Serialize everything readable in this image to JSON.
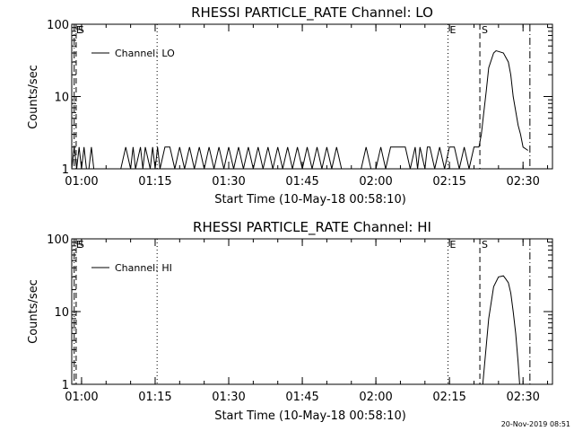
{
  "chart_data": [
    {
      "type": "line",
      "title": "RHESSI PARTICLE_RATE Channel: LO",
      "xlabel": "Start Time (10-May-18 00:58:10)",
      "ylabel": "Counts/sec",
      "y_scale": "log",
      "ylim": [
        1,
        100
      ],
      "xlim_minutes": [
        0,
        98
      ],
      "x_ticks": [
        {
          "label": "01:00",
          "minutes": 2
        },
        {
          "label": "01:15",
          "minutes": 17
        },
        {
          "label": "01:30",
          "minutes": 32
        },
        {
          "label": "01:45",
          "minutes": 47
        },
        {
          "label": "02:00",
          "minutes": 62
        },
        {
          "label": "02:15",
          "minutes": 77
        },
        {
          "label": "02:30",
          "minutes": 92
        }
      ],
      "y_ticks": [
        {
          "label": "1",
          "value": 1
        },
        {
          "label": "10",
          "value": 10
        },
        {
          "label": "100",
          "value": 100
        }
      ],
      "legend": {
        "label": "Channel: LO",
        "placement": "top-left"
      },
      "markers": [
        {
          "minutes": 0.5,
          "style": "dash-dot",
          "label": "E"
        },
        {
          "minutes": 0.9,
          "style": "dashed",
          "label": "S"
        },
        {
          "minutes": 17.4,
          "style": "dotted",
          "label": ""
        },
        {
          "minutes": 76.7,
          "style": "dotted",
          "label": "E"
        },
        {
          "minutes": 83.2,
          "style": "dashed",
          "label": "S"
        },
        {
          "minutes": 93.4,
          "style": "dash-dot",
          "label": ""
        }
      ],
      "series": [
        {
          "name": "Channel: LO",
          "x": [
            0,
            0.5,
            1,
            1.5,
            2,
            2.5,
            3,
            3.5,
            4,
            4.5,
            5,
            8,
            10,
            11,
            12,
            12.5,
            13,
            14,
            14.5,
            15,
            16,
            16.5,
            17,
            17.5,
            18,
            19,
            20,
            21,
            22,
            23,
            24,
            25,
            26,
            27,
            28,
            29,
            30,
            31,
            32,
            33,
            34,
            35,
            36,
            37,
            38,
            39,
            40,
            41,
            42,
            43,
            44,
            45,
            46,
            47,
            48,
            49,
            50,
            51,
            52,
            53,
            54,
            55,
            56,
            57,
            58,
            59,
            60,
            61,
            62,
            63,
            64,
            65,
            66,
            67,
            68,
            69,
            70,
            70.5,
            71,
            72,
            72.5,
            73,
            74,
            75,
            76,
            77,
            78,
            79,
            80,
            81,
            82,
            83,
            83.5,
            84,
            84.5,
            85,
            86,
            86.5,
            87,
            88,
            89,
            89.5,
            90,
            91,
            91.5,
            92,
            93
          ],
          "y": [
            1,
            2,
            1,
            2,
            1,
            2,
            1,
            1,
            2,
            1,
            1,
            1,
            1,
            2,
            1,
            2,
            1,
            2,
            1,
            2,
            1,
            2,
            1,
            2,
            1,
            2,
            2,
            1,
            2,
            1,
            2,
            1,
            2,
            1,
            2,
            1,
            2,
            1,
            2,
            1,
            2,
            1,
            2,
            1,
            2,
            1,
            2,
            1,
            2,
            1,
            2,
            1,
            2,
            1,
            2,
            1,
            2,
            1,
            2,
            1,
            2,
            1,
            1,
            1,
            1,
            1,
            2,
            1,
            1,
            2,
            1,
            2,
            2,
            2,
            2,
            1,
            2,
            1,
            2,
            1,
            2,
            2,
            1,
            2,
            1,
            2,
            2,
            1,
            2,
            1,
            2,
            2,
            3,
            6,
            12,
            25,
            40,
            43,
            42,
            40,
            30,
            20,
            10,
            4,
            3,
            2,
            1.8
          ]
        }
      ]
    },
    {
      "type": "line",
      "title": "RHESSI PARTICLE_RATE Channel: HI",
      "xlabel": "Start Time (10-May-18 00:58:10)",
      "ylabel": "Counts/sec",
      "y_scale": "log",
      "ylim": [
        1,
        100
      ],
      "xlim_minutes": [
        0,
        98
      ],
      "x_ticks": [
        {
          "label": "01:00",
          "minutes": 2
        },
        {
          "label": "01:15",
          "minutes": 17
        },
        {
          "label": "01:30",
          "minutes": 32
        },
        {
          "label": "01:45",
          "minutes": 47
        },
        {
          "label": "02:00",
          "minutes": 62
        },
        {
          "label": "02:15",
          "minutes": 77
        },
        {
          "label": "02:30",
          "minutes": 92
        }
      ],
      "y_ticks": [
        {
          "label": "1",
          "value": 1
        },
        {
          "label": "10",
          "value": 10
        },
        {
          "label": "100",
          "value": 100
        }
      ],
      "legend": {
        "label": "Channel: HI",
        "placement": "top-left"
      },
      "markers": [
        {
          "minutes": 0.5,
          "style": "dash-dot",
          "label": "E"
        },
        {
          "minutes": 0.9,
          "style": "dashed",
          "label": "S"
        },
        {
          "minutes": 17.4,
          "style": "dotted",
          "label": ""
        },
        {
          "minutes": 76.7,
          "style": "dotted",
          "label": "E"
        },
        {
          "minutes": 83.2,
          "style": "dashed",
          "label": "S"
        },
        {
          "minutes": 93.4,
          "style": "dash-dot",
          "label": ""
        }
      ],
      "series": [
        {
          "name": "Channel: HI",
          "x": [
            83.8,
            84.2,
            85,
            86,
            87,
            88,
            88.5,
            89,
            89.5,
            90,
            90.5,
            91,
            91.3
          ],
          "y": [
            1,
            2,
            8,
            22,
            30,
            31,
            28,
            25,
            18,
            10,
            5,
            2,
            1
          ]
        }
      ]
    }
  ],
  "footer": {
    "timestamp": "20-Nov-2019 08:51"
  }
}
